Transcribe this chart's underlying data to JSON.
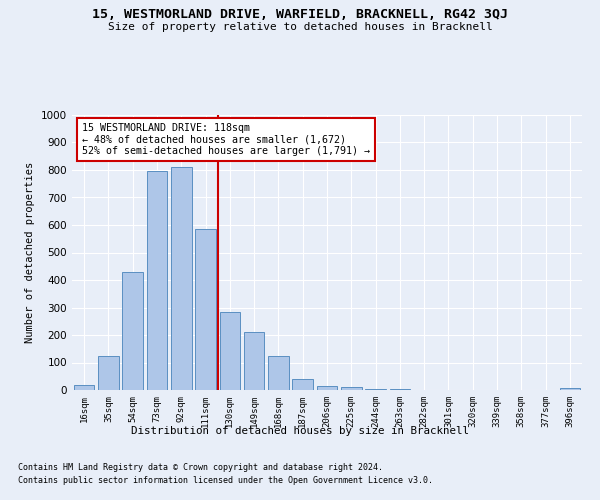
{
  "title": "15, WESTMORLAND DRIVE, WARFIELD, BRACKNELL, RG42 3QJ",
  "subtitle": "Size of property relative to detached houses in Bracknell",
  "xlabel": "Distribution of detached houses by size in Bracknell",
  "ylabel": "Number of detached properties",
  "footnote1": "Contains HM Land Registry data © Crown copyright and database right 2024.",
  "footnote2": "Contains public sector information licensed under the Open Government Licence v3.0.",
  "bar_labels": [
    "16sqm",
    "35sqm",
    "54sqm",
    "73sqm",
    "92sqm",
    "111sqm",
    "130sqm",
    "149sqm",
    "168sqm",
    "187sqm",
    "206sqm",
    "225sqm",
    "244sqm",
    "263sqm",
    "282sqm",
    "301sqm",
    "320sqm",
    "339sqm",
    "358sqm",
    "377sqm",
    "396sqm"
  ],
  "bar_values": [
    18,
    125,
    430,
    795,
    810,
    585,
    285,
    210,
    125,
    40,
    15,
    10,
    5,
    5,
    0,
    0,
    0,
    0,
    0,
    0,
    8
  ],
  "bar_color": "#aec6e8",
  "bar_edgecolor": "#5a8fc2",
  "vline_bin_index": 5,
  "vline_color": "#cc0000",
  "annotation_text": "15 WESTMORLAND DRIVE: 118sqm\n← 48% of detached houses are smaller (1,672)\n52% of semi-detached houses are larger (1,791) →",
  "annotation_boxcolor": "#ffffff",
  "annotation_boxedgecolor": "#cc0000",
  "ylim": [
    0,
    1000
  ],
  "yticks": [
    0,
    100,
    200,
    300,
    400,
    500,
    600,
    700,
    800,
    900,
    1000
  ],
  "bg_color": "#e8eef8",
  "axes_bg_color": "#e8eef8",
  "grid_color": "#ffffff"
}
